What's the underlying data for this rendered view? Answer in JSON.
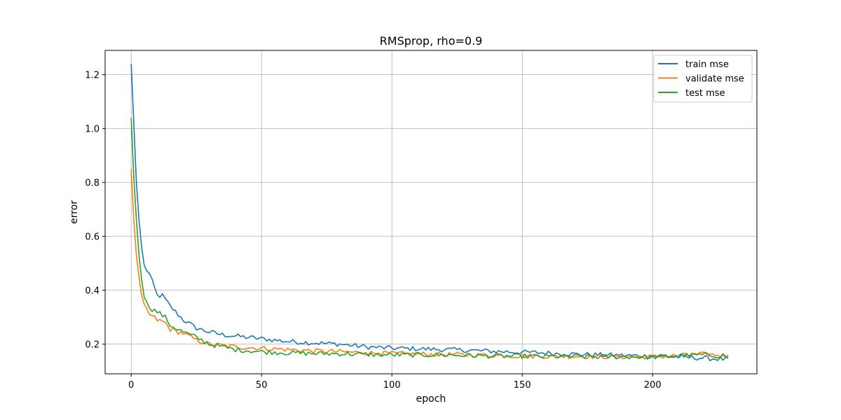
{
  "chart_data": {
    "type": "line",
    "title": "RMSprop, rho=0.9",
    "xlabel": "epoch",
    "ylabel": "error",
    "xlim": [
      -10,
      240
    ],
    "ylim": [
      0.09,
      1.29
    ],
    "xticks": [
      0,
      50,
      100,
      150,
      200
    ],
    "yticks": [
      0.2,
      0.4,
      0.6,
      0.8,
      1.0,
      1.2
    ],
    "xtick_labels": [
      "0",
      "50",
      "100",
      "150",
      "200"
    ],
    "ytick_labels": [
      "0.2",
      "0.4",
      "0.6",
      "0.8",
      "1.0",
      "1.2"
    ],
    "grid": true,
    "legend": "top-right",
    "epochs": 230,
    "series": [
      {
        "name": "train mse",
        "color": "#1f77b4",
        "anchors": [
          [
            0,
            1.24
          ],
          [
            1,
            1.02
          ],
          [
            2,
            0.8
          ],
          [
            3,
            0.66
          ],
          [
            4,
            0.56
          ],
          [
            5,
            0.49
          ],
          [
            7,
            0.46
          ],
          [
            10,
            0.38
          ],
          [
            12,
            0.38
          ],
          [
            15,
            0.34
          ],
          [
            20,
            0.29
          ],
          [
            25,
            0.26
          ],
          [
            30,
            0.245
          ],
          [
            35,
            0.235
          ],
          [
            40,
            0.23
          ],
          [
            50,
            0.22
          ],
          [
            60,
            0.21
          ],
          [
            70,
            0.205
          ],
          [
            80,
            0.2
          ],
          [
            90,
            0.19
          ],
          [
            100,
            0.185
          ],
          [
            110,
            0.183
          ],
          [
            120,
            0.18
          ],
          [
            130,
            0.177
          ],
          [
            140,
            0.173
          ],
          [
            150,
            0.17
          ],
          [
            160,
            0.167
          ],
          [
            170,
            0.163
          ],
          [
            180,
            0.16
          ],
          [
            190,
            0.158
          ],
          [
            200,
            0.155
          ],
          [
            210,
            0.152
          ],
          [
            220,
            0.148
          ],
          [
            229,
            0.143
          ]
        ],
        "noise": 0.009
      },
      {
        "name": "validate mse",
        "color": "#ff7f0e",
        "anchors": [
          [
            0,
            0.85
          ],
          [
            1,
            0.66
          ],
          [
            2,
            0.53
          ],
          [
            3,
            0.45
          ],
          [
            4,
            0.38
          ],
          [
            5,
            0.34
          ],
          [
            7,
            0.31
          ],
          [
            10,
            0.29
          ],
          [
            13,
            0.28
          ],
          [
            15,
            0.255
          ],
          [
            20,
            0.24
          ],
          [
            25,
            0.215
          ],
          [
            30,
            0.2
          ],
          [
            35,
            0.195
          ],
          [
            40,
            0.19
          ],
          [
            50,
            0.185
          ],
          [
            60,
            0.18
          ],
          [
            70,
            0.175
          ],
          [
            80,
            0.172
          ],
          [
            90,
            0.168
          ],
          [
            100,
            0.165
          ],
          [
            110,
            0.163
          ],
          [
            120,
            0.162
          ],
          [
            130,
            0.16
          ],
          [
            140,
            0.158
          ],
          [
            150,
            0.156
          ],
          [
            160,
            0.155
          ],
          [
            170,
            0.155
          ],
          [
            180,
            0.154
          ],
          [
            190,
            0.153
          ],
          [
            200,
            0.153
          ],
          [
            210,
            0.158
          ],
          [
            220,
            0.162
          ],
          [
            229,
            0.158
          ]
        ],
        "noise": 0.009
      },
      {
        "name": "test mse",
        "color": "#2ca02c",
        "anchors": [
          [
            0,
            1.04
          ],
          [
            1,
            0.82
          ],
          [
            2,
            0.66
          ],
          [
            3,
            0.53
          ],
          [
            4,
            0.44
          ],
          [
            5,
            0.38
          ],
          [
            6,
            0.35
          ],
          [
            8,
            0.33
          ],
          [
            10,
            0.32
          ],
          [
            13,
            0.3
          ],
          [
            15,
            0.27
          ],
          [
            20,
            0.245
          ],
          [
            25,
            0.225
          ],
          [
            30,
            0.2
          ],
          [
            35,
            0.19
          ],
          [
            40,
            0.18
          ],
          [
            50,
            0.172
          ],
          [
            60,
            0.168
          ],
          [
            70,
            0.165
          ],
          [
            80,
            0.165
          ],
          [
            90,
            0.162
          ],
          [
            100,
            0.16
          ],
          [
            110,
            0.16
          ],
          [
            120,
            0.16
          ],
          [
            130,
            0.158
          ],
          [
            140,
            0.156
          ],
          [
            150,
            0.155
          ],
          [
            160,
            0.154
          ],
          [
            170,
            0.154
          ],
          [
            180,
            0.153
          ],
          [
            190,
            0.153
          ],
          [
            200,
            0.152
          ],
          [
            210,
            0.158
          ],
          [
            220,
            0.16
          ],
          [
            229,
            0.155
          ]
        ],
        "noise": 0.009
      }
    ]
  }
}
